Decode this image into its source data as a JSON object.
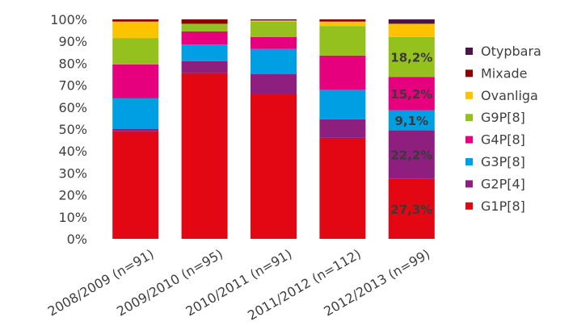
{
  "chart_data": {
    "type": "bar",
    "stacked": true,
    "normalized": true,
    "categories": [
      "2008/2009 (n=91)",
      "2009/2010 (n=95)",
      "2010/2011 (n=91)",
      "2011/2012 (n=112)",
      "2012/2013 (n=99)"
    ],
    "ylim": [
      0,
      100
    ],
    "yticks": [
      "0%",
      "10%",
      "20%",
      "30%",
      "40%",
      "50%",
      "60%",
      "70%",
      "80%",
      "90%",
      "100%"
    ],
    "grid": false,
    "legend_position": "right",
    "series": [
      {
        "name": "G1P[8]",
        "color": "#e30613",
        "values": [
          49.0,
          75.5,
          66.0,
          46.0,
          27.3
        ]
      },
      {
        "name": "G2P[4]",
        "color": "#8e1f7f",
        "values": [
          1.0,
          5.5,
          9.0,
          8.5,
          22.2
        ]
      },
      {
        "name": "G3P[8]",
        "color": "#009fe3",
        "values": [
          14.0,
          7.5,
          11.5,
          13.5,
          9.1
        ]
      },
      {
        "name": "G4P[8]",
        "color": "#e6007e",
        "values": [
          15.5,
          6.0,
          5.5,
          15.5,
          15.2
        ]
      },
      {
        "name": "G9P[8]",
        "color": "#95c11f",
        "values": [
          12.0,
          3.5,
          7.0,
          13.5,
          18.2
        ]
      },
      {
        "name": "Ovanliga",
        "color": "#fdc300",
        "values": [
          7.5,
          0.0,
          0.5,
          2.0,
          6.0
        ]
      },
      {
        "name": "Mixade",
        "color": "#8b0000",
        "values": [
          1.0,
          2.0,
          0.0,
          1.0,
          0.0
        ]
      },
      {
        "name": "Otypbara",
        "color": "#4a1547",
        "values": [
          0.0,
          0.0,
          0.5,
          0.0,
          2.0
        ]
      }
    ],
    "data_labels": [
      {
        "category_index": 4,
        "series_index": 0,
        "text": "27,3%"
      },
      {
        "category_index": 4,
        "series_index": 1,
        "text": "22,2%"
      },
      {
        "category_index": 4,
        "series_index": 2,
        "text": "9,1%"
      },
      {
        "category_index": 4,
        "series_index": 3,
        "text": "15,2%"
      },
      {
        "category_index": 4,
        "series_index": 4,
        "text": "18,2%"
      }
    ],
    "legend_order": [
      "Otypbara",
      "Mixade",
      "Ovanliga",
      "G9P[8]",
      "G4P[8]",
      "G3P[8]",
      "G2P[4]",
      "G1P[8]"
    ]
  }
}
